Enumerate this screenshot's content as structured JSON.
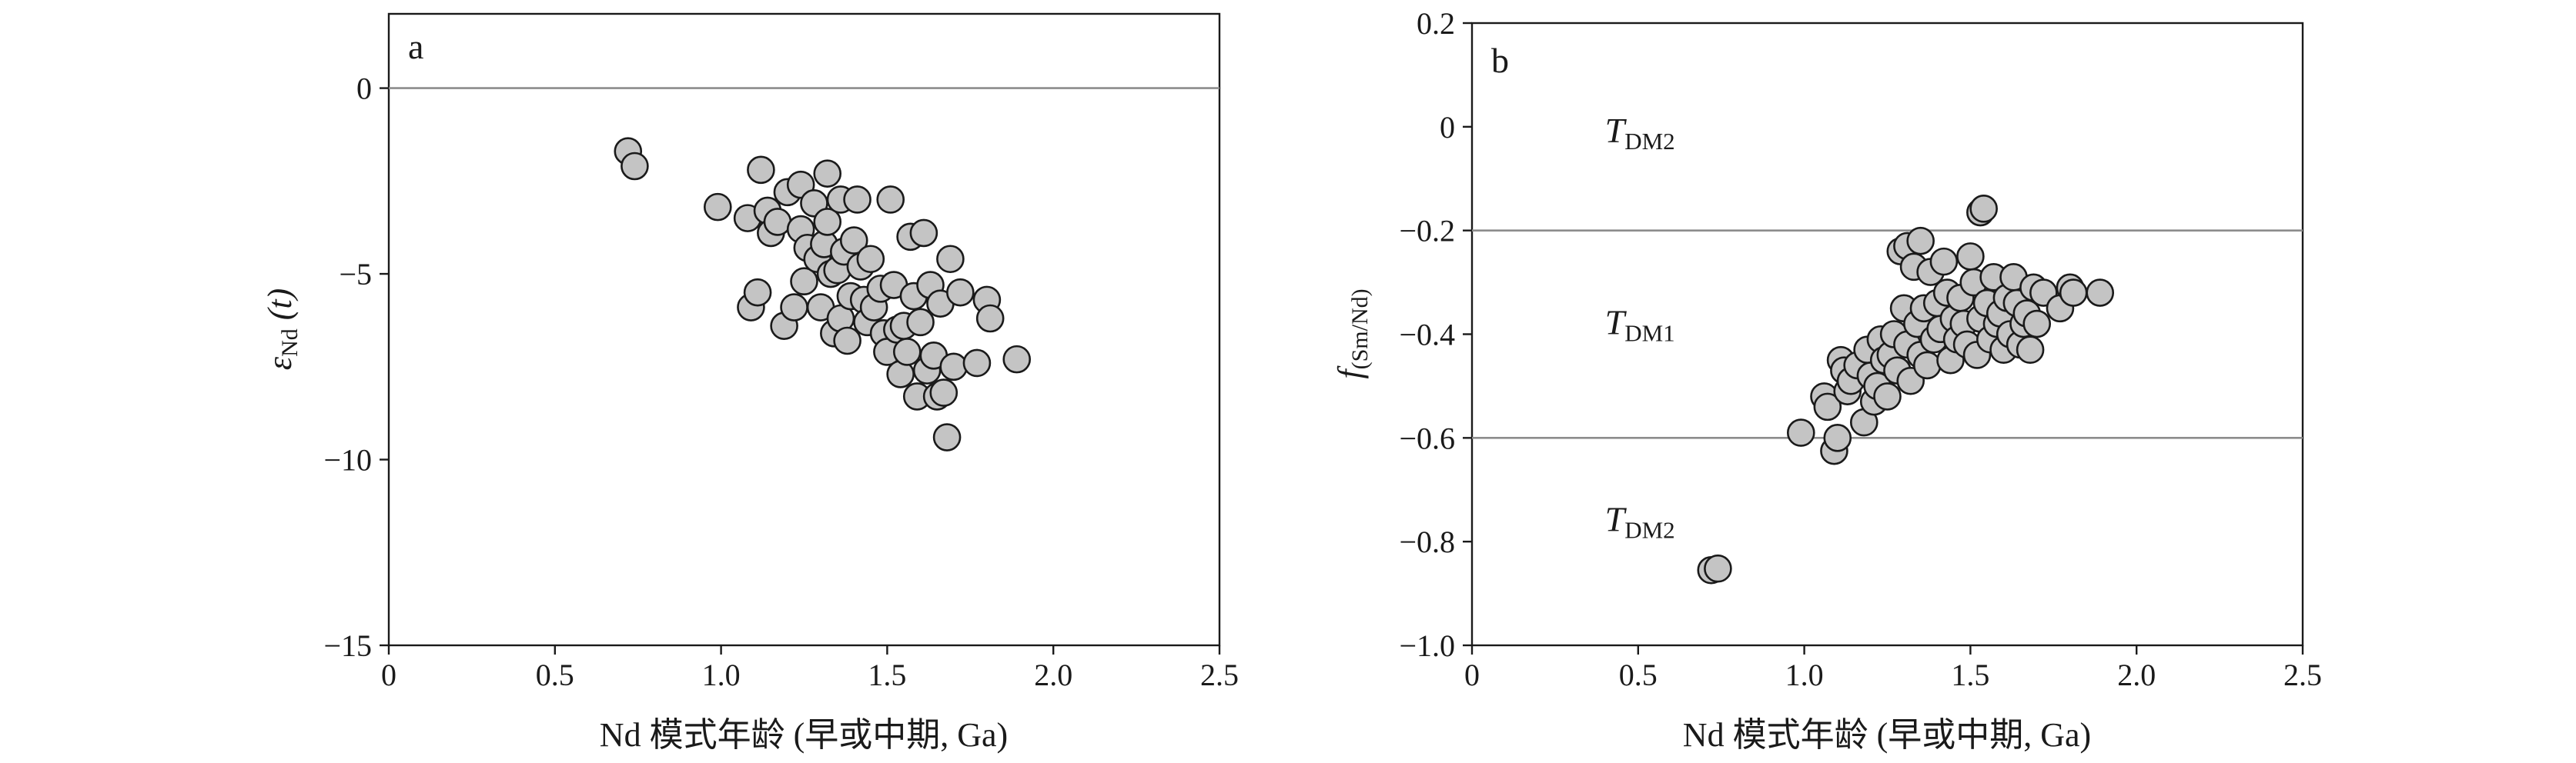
{
  "chart_data": [
    {
      "type": "scatter",
      "panel_label": "a",
      "xlabel": "Nd 模式年龄 (早或中期, Ga)",
      "ylabel": {
        "symbol": "ε",
        "subscript": "Nd",
        "suffix": " (t)"
      },
      "xlim": [
        0,
        2.5
      ],
      "ylim": [
        -15,
        2
      ],
      "x_ticks": [
        "0",
        "0.5",
        "1.0",
        "1.5",
        "2.0",
        "2.5"
      ],
      "x_tick_values": [
        0,
        0.5,
        1.0,
        1.5,
        2.0,
        2.5
      ],
      "y_ticks": [
        "0",
        "−5",
        "−10",
        "−15"
      ],
      "y_tick_values": [
        0,
        -5,
        -10,
        -15
      ],
      "reference_lines": [
        0
      ],
      "grid": false,
      "points": [
        [
          0.72,
          -1.7
        ],
        [
          0.74,
          -2.1
        ],
        [
          0.99,
          -3.2
        ],
        [
          1.08,
          -3.5
        ],
        [
          1.09,
          -5.9
        ],
        [
          1.11,
          -5.5
        ],
        [
          1.12,
          -2.2
        ],
        [
          1.14,
          -3.3
        ],
        [
          1.15,
          -3.9
        ],
        [
          1.17,
          -3.6
        ],
        [
          1.19,
          -6.4
        ],
        [
          1.2,
          -2.8
        ],
        [
          1.22,
          -5.9
        ],
        [
          1.24,
          -2.6
        ],
        [
          1.24,
          -3.8
        ],
        [
          1.25,
          -5.2
        ],
        [
          1.26,
          -4.3
        ],
        [
          1.28,
          -3.1
        ],
        [
          1.29,
          -4.6
        ],
        [
          1.3,
          -5.9
        ],
        [
          1.31,
          -4.2
        ],
        [
          1.32,
          -2.3
        ],
        [
          1.32,
          -3.6
        ],
        [
          1.33,
          -5.0
        ],
        [
          1.34,
          -6.6
        ],
        [
          1.35,
          -4.9
        ],
        [
          1.36,
          -3.0
        ],
        [
          1.36,
          -6.2
        ],
        [
          1.37,
          -4.4
        ],
        [
          1.38,
          -6.8
        ],
        [
          1.39,
          -5.6
        ],
        [
          1.4,
          -4.1
        ],
        [
          1.41,
          -3.0
        ],
        [
          1.42,
          -4.8
        ],
        [
          1.43,
          -5.7
        ],
        [
          1.44,
          -6.3
        ],
        [
          1.45,
          -4.6
        ],
        [
          1.46,
          -5.9
        ],
        [
          1.48,
          -5.4
        ],
        [
          1.49,
          -6.6
        ],
        [
          1.5,
          -7.1
        ],
        [
          1.51,
          -3.0
        ],
        [
          1.52,
          -5.3
        ],
        [
          1.53,
          -6.5
        ],
        [
          1.54,
          -7.7
        ],
        [
          1.55,
          -6.4
        ],
        [
          1.56,
          -7.1
        ],
        [
          1.57,
          -4.0
        ],
        [
          1.58,
          -5.6
        ],
        [
          1.59,
          -8.3
        ],
        [
          1.6,
          -6.3
        ],
        [
          1.61,
          -3.9
        ],
        [
          1.62,
          -7.6
        ],
        [
          1.63,
          -5.3
        ],
        [
          1.64,
          -7.2
        ],
        [
          1.65,
          -8.3
        ],
        [
          1.66,
          -5.8
        ],
        [
          1.67,
          -8.2
        ],
        [
          1.68,
          -9.4
        ],
        [
          1.69,
          -4.6
        ],
        [
          1.7,
          -7.5
        ],
        [
          1.72,
          -5.5
        ],
        [
          1.77,
          -7.4
        ],
        [
          1.8,
          -5.7
        ],
        [
          1.81,
          -6.2
        ],
        [
          1.89,
          -7.3
        ]
      ]
    },
    {
      "type": "scatter",
      "panel_label": "b",
      "xlabel": "Nd 模式年龄 (早或中期, Ga)",
      "ylabel": {
        "symbol": "f",
        "subscript": "(Sm/Nd)"
      },
      "xlim": [
        0,
        2.5
      ],
      "ylim": [
        -1.0,
        0.2
      ],
      "x_ticks": [
        "0",
        "0.5",
        "1.0",
        "1.5",
        "2.0",
        "2.5"
      ],
      "x_tick_values": [
        0,
        0.5,
        1.0,
        1.5,
        2.0,
        2.5
      ],
      "y_ticks": [
        "0.2",
        "0",
        "−0.2",
        "−0.4",
        "−0.6",
        "−0.8",
        "−1.0"
      ],
      "y_tick_values": [
        0.2,
        0,
        -0.2,
        -0.4,
        -0.6,
        -0.8,
        -1.0
      ],
      "reference_lines": [
        -0.2,
        -0.6
      ],
      "grid": false,
      "annotations": [
        {
          "base": "T",
          "sub": "DM2",
          "x": 0.4,
          "y": -0.03
        },
        {
          "base": "T",
          "sub": "DM1",
          "x": 0.4,
          "y": -0.4
        },
        {
          "base": "T",
          "sub": "DM2",
          "x": 0.4,
          "y": -0.78
        }
      ],
      "points": [
        [
          0.72,
          -0.855
        ],
        [
          0.74,
          -0.852
        ],
        [
          0.99,
          -0.59
        ],
        [
          1.06,
          -0.52
        ],
        [
          1.07,
          -0.54
        ],
        [
          1.09,
          -0.625
        ],
        [
          1.1,
          -0.6
        ],
        [
          1.11,
          -0.45
        ],
        [
          1.12,
          -0.47
        ],
        [
          1.13,
          -0.51
        ],
        [
          1.14,
          -0.49
        ],
        [
          1.16,
          -0.46
        ],
        [
          1.18,
          -0.57
        ],
        [
          1.19,
          -0.43
        ],
        [
          1.2,
          -0.48
        ],
        [
          1.21,
          -0.53
        ],
        [
          1.22,
          -0.5
        ],
        [
          1.23,
          -0.41
        ],
        [
          1.24,
          -0.45
        ],
        [
          1.25,
          -0.52
        ],
        [
          1.26,
          -0.44
        ],
        [
          1.27,
          -0.4
        ],
        [
          1.28,
          -0.47
        ],
        [
          1.29,
          -0.24
        ],
        [
          1.3,
          -0.35
        ],
        [
          1.31,
          -0.42
        ],
        [
          1.31,
          -0.23
        ],
        [
          1.32,
          -0.49
        ],
        [
          1.33,
          -0.27
        ],
        [
          1.34,
          -0.38
        ],
        [
          1.35,
          -0.22
        ],
        [
          1.35,
          -0.44
        ],
        [
          1.36,
          -0.35
        ],
        [
          1.37,
          -0.46
        ],
        [
          1.38,
          -0.28
        ],
        [
          1.39,
          -0.41
        ],
        [
          1.4,
          -0.34
        ],
        [
          1.41,
          -0.39
        ],
        [
          1.42,
          -0.26
        ],
        [
          1.43,
          -0.32
        ],
        [
          1.44,
          -0.45
        ],
        [
          1.45,
          -0.37
        ],
        [
          1.46,
          -0.41
        ],
        [
          1.47,
          -0.33
        ],
        [
          1.48,
          -0.38
        ],
        [
          1.49,
          -0.42
        ],
        [
          1.5,
          -0.25
        ],
        [
          1.51,
          -0.3
        ],
        [
          1.52,
          -0.44
        ],
        [
          1.53,
          -0.37
        ],
        [
          1.53,
          -0.165
        ],
        [
          1.54,
          -0.158
        ],
        [
          1.55,
          -0.34
        ],
        [
          1.56,
          -0.41
        ],
        [
          1.57,
          -0.29
        ],
        [
          1.58,
          -0.38
        ],
        [
          1.59,
          -0.36
        ],
        [
          1.6,
          -0.43
        ],
        [
          1.61,
          -0.33
        ],
        [
          1.62,
          -0.4
        ],
        [
          1.63,
          -0.29
        ],
        [
          1.64,
          -0.34
        ],
        [
          1.65,
          -0.42
        ],
        [
          1.66,
          -0.38
        ],
        [
          1.67,
          -0.36
        ],
        [
          1.68,
          -0.43
        ],
        [
          1.69,
          -0.31
        ],
        [
          1.7,
          -0.38
        ],
        [
          1.72,
          -0.32
        ],
        [
          1.77,
          -0.35
        ],
        [
          1.8,
          -0.31
        ],
        [
          1.81,
          -0.32
        ],
        [
          1.89,
          -0.32
        ]
      ]
    }
  ]
}
